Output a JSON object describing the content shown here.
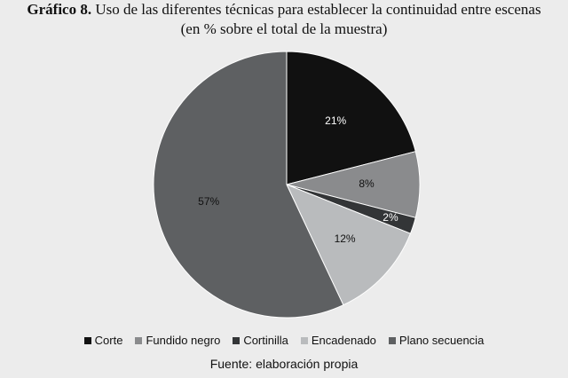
{
  "title": {
    "lead": "Gráfico 8.",
    "rest": "Uso de las diferentes técnicas para establecer la continuidad entre escenas",
    "line2": "(en % sobre el total de la muestra)"
  },
  "source": "Fuente: elaboración propia",
  "chart_data": {
    "type": "pie",
    "legend_position": "bottom",
    "start_angle_deg": 0,
    "direction": "clockwise",
    "slices": [
      {
        "name": "Corte",
        "value": 21,
        "label": "21%",
        "color": "#111111"
      },
      {
        "name": "Fundido negro",
        "value": 8,
        "label": "8%",
        "color": "#8a8b8d"
      },
      {
        "name": "Cortinilla",
        "value": 2,
        "label": "2%",
        "color": "#333537"
      },
      {
        "name": "Encadenado",
        "value": 12,
        "label": "12%",
        "color": "#b9bbbd"
      },
      {
        "name": "Plano secuencia",
        "value": 57,
        "label": "57%",
        "color": "#5e6062"
      }
    ]
  }
}
